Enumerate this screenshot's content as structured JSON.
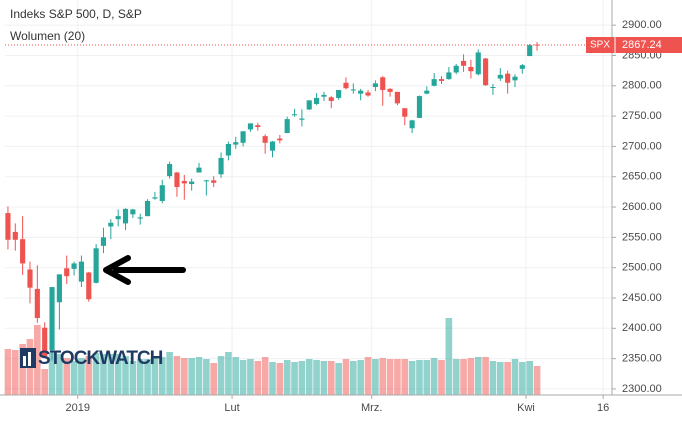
{
  "chart_data": {
    "type": "candlestick",
    "title": "Indeks S&P 500, D, S&P",
    "subtitle": "Wolumen (20)",
    "watermark": "STOCKWATCH",
    "symbol": "SPX",
    "up_color": "#26a69a",
    "down_color": "#ef5350",
    "grid": true,
    "xlim": [
      -0.4,
      82.2
    ],
    "xticks": [
      {
        "value": 9.5,
        "label": "2019"
      },
      {
        "value": 30.5,
        "label": "Lut"
      },
      {
        "value": 49.5,
        "label": "Mrz."
      },
      {
        "value": 70.5,
        "label": "Kwi"
      },
      {
        "value": 81,
        "label": "16"
      }
    ],
    "ylim": [
      2290,
      2925
    ],
    "yticks": [
      {
        "value": 2300,
        "label": "2300.00"
      },
      {
        "value": 2350,
        "label": "2350.00"
      },
      {
        "value": 2400,
        "label": "2400.00"
      },
      {
        "value": 2450,
        "label": "2450.00"
      },
      {
        "value": 2500,
        "label": "2500.00"
      },
      {
        "value": 2550,
        "label": "2550.00"
      },
      {
        "value": 2600,
        "label": "2600.00"
      },
      {
        "value": 2650,
        "label": "2650.00"
      },
      {
        "value": 2700,
        "label": "2700.00"
      },
      {
        "value": 2750,
        "label": "2750.00"
      },
      {
        "value": 2800,
        "label": "2800.00"
      },
      {
        "value": 2850,
        "label": "2850.00"
      },
      {
        "value": 2900,
        "label": "2900.00"
      }
    ],
    "volume_lim": [
      0,
      10
    ],
    "open": [
      2590,
      2559,
      2547,
      2497,
      2465,
      2401,
      2364,
      2443,
      2499,
      2498,
      2477,
      2492,
      2475,
      2536,
      2568,
      2580,
      2573,
      2588,
      2581,
      2585,
      2614,
      2610,
      2651,
      2657,
      2643,
      2638,
      2657,
      2644,
      2644,
      2654,
      2685,
      2703,
      2706,
      2728,
      2735,
      2717,
      2693,
      2713,
      2722,
      2752,
      2744,
      2761,
      2770,
      2782,
      2781,
      2780,
      2805,
      2793,
      2787,
      2789,
      2798,
      2814,
      2795,
      2790,
      2763,
      2730,
      2747,
      2787,
      2800,
      2811,
      2811,
      2822,
      2841,
      2831,
      2819,
      2845,
      2797,
      2812,
      2820,
      2809,
      2828,
      2849,
      2868
    ],
    "high": [
      2601,
      2573,
      2585,
      2510,
      2504,
      2410,
      2468,
      2489,
      2520,
      2510,
      2520,
      2493,
      2539,
      2566,
      2580,
      2596,
      2598,
      2597,
      2589,
      2613,
      2625,
      2645,
      2675,
      2658,
      2653,
      2647,
      2673,
      2645,
      2651,
      2690,
      2708,
      2716,
      2725,
      2738,
      2739,
      2720,
      2709,
      2719,
      2749,
      2762,
      2761,
      2776,
      2788,
      2790,
      2783,
      2793,
      2814,
      2804,
      2795,
      2793,
      2809,
      2816,
      2796,
      2790,
      2763,
      2744,
      2784,
      2799,
      2821,
      2816,
      2831,
      2836,
      2852,
      2843,
      2860,
      2846,
      2803,
      2829,
      2825,
      2819,
      2836,
      2869,
      2872
    ],
    "low": [
      2530,
      2528,
      2488,
      2441,
      2409,
      2351,
      2347,
      2398,
      2473,
      2487,
      2468,
      2444,
      2474,
      2524,
      2547,
      2568,
      2562,
      2582,
      2571,
      2585,
      2612,
      2606,
      2647,
      2617,
      2612,
      2627,
      2657,
      2619,
      2633,
      2648,
      2677,
      2696,
      2700,
      2724,
      2726,
      2688,
      2682,
      2705,
      2722,
      2749,
      2733,
      2760,
      2768,
      2775,
      2763,
      2777,
      2794,
      2787,
      2776,
      2782,
      2791,
      2767,
      2782,
      2768,
      2735,
      2722,
      2747,
      2786,
      2799,
      2803,
      2810,
      2819,
      2823,
      2812,
      2817,
      2800,
      2785,
      2808,
      2787,
      2798,
      2820,
      2849,
      2858
    ],
    "close": [
      2546,
      2546,
      2507,
      2467,
      2417,
      2351,
      2468,
      2489,
      2486,
      2507,
      2510,
      2448,
      2532,
      2550,
      2574,
      2585,
      2597,
      2596,
      2583,
      2610,
      2616,
      2636,
      2671,
      2633,
      2639,
      2642,
      2665,
      2644,
      2640,
      2681,
      2704,
      2707,
      2725,
      2738,
      2732,
      2706,
      2708,
      2710,
      2745,
      2753,
      2746,
      2776,
      2780,
      2785,
      2775,
      2793,
      2796,
      2794,
      2792,
      2784,
      2804,
      2793,
      2790,
      2771,
      2749,
      2743,
      2783,
      2792,
      2811,
      2808,
      2822,
      2833,
      2833,
      2824,
      2855,
      2801,
      2798,
      2818,
      2805,
      2815,
      2834,
      2867,
      2867.24
    ],
    "volume": [
      4.6,
      4.5,
      5.1,
      5.6,
      7.0,
      2.6,
      4.2,
      4.1,
      3.7,
      3.4,
      3.7,
      3.9,
      4.2,
      4.1,
      4.1,
      4.1,
      3.9,
      3.4,
      3.6,
      3.6,
      3.9,
      3.8,
      4.3,
      3.9,
      3.7,
      3.7,
      3.8,
      3.6,
      3.2,
      3.9,
      4.3,
      3.8,
      3.5,
      3.6,
      3.4,
      3.8,
      3.3,
      3.2,
      3.5,
      3.3,
      3.4,
      3.6,
      3.5,
      3.4,
      3.4,
      3.2,
      3.6,
      3.4,
      3.5,
      3.8,
      3.6,
      3.7,
      3.6,
      3.6,
      3.6,
      3.4,
      3.5,
      3.5,
      3.7,
      3.5,
      7.7,
      3.6,
      3.6,
      3.7,
      3.8,
      3.8,
      3.4,
      3.3,
      3.3,
      3.6,
      3.3,
      3.4,
      2.9
    ]
  }
}
